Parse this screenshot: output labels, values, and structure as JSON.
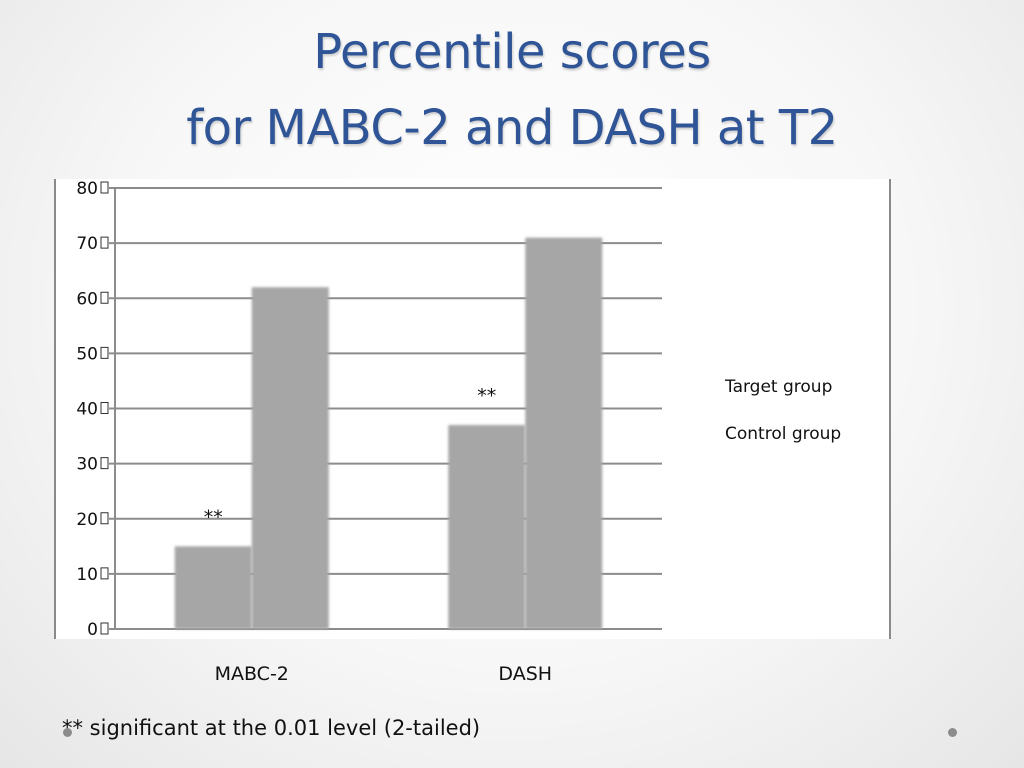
{
  "slide": {
    "title_line1": "Percentile scores",
    "title_line2": "for MABC-2 and DASH at T2",
    "footnote": "** significant at the 0.01 level (2-tailed)",
    "title_color": "#2f5597"
  },
  "chart_data": {
    "type": "bar",
    "categories": [
      "MABC-2",
      "DASH"
    ],
    "series": [
      {
        "name": "Target group",
        "values": [
          15,
          37
        ],
        "color": "#a6a6a6"
      },
      {
        "name": "Control group",
        "values": [
          62,
          71
        ],
        "color": "#a6a6a6"
      }
    ],
    "annotations": [
      {
        "category": "MABC-2",
        "series": "Target group",
        "text": "**"
      },
      {
        "category": "DASH",
        "series": "Target group",
        "text": "**"
      }
    ],
    "ylim": [
      0,
      80
    ],
    "yticks": [
      "0",
      "10",
      "20",
      "30",
      "40",
      "50",
      "60",
      "70",
      "80"
    ],
    "grid": true,
    "legend_position": "right"
  }
}
